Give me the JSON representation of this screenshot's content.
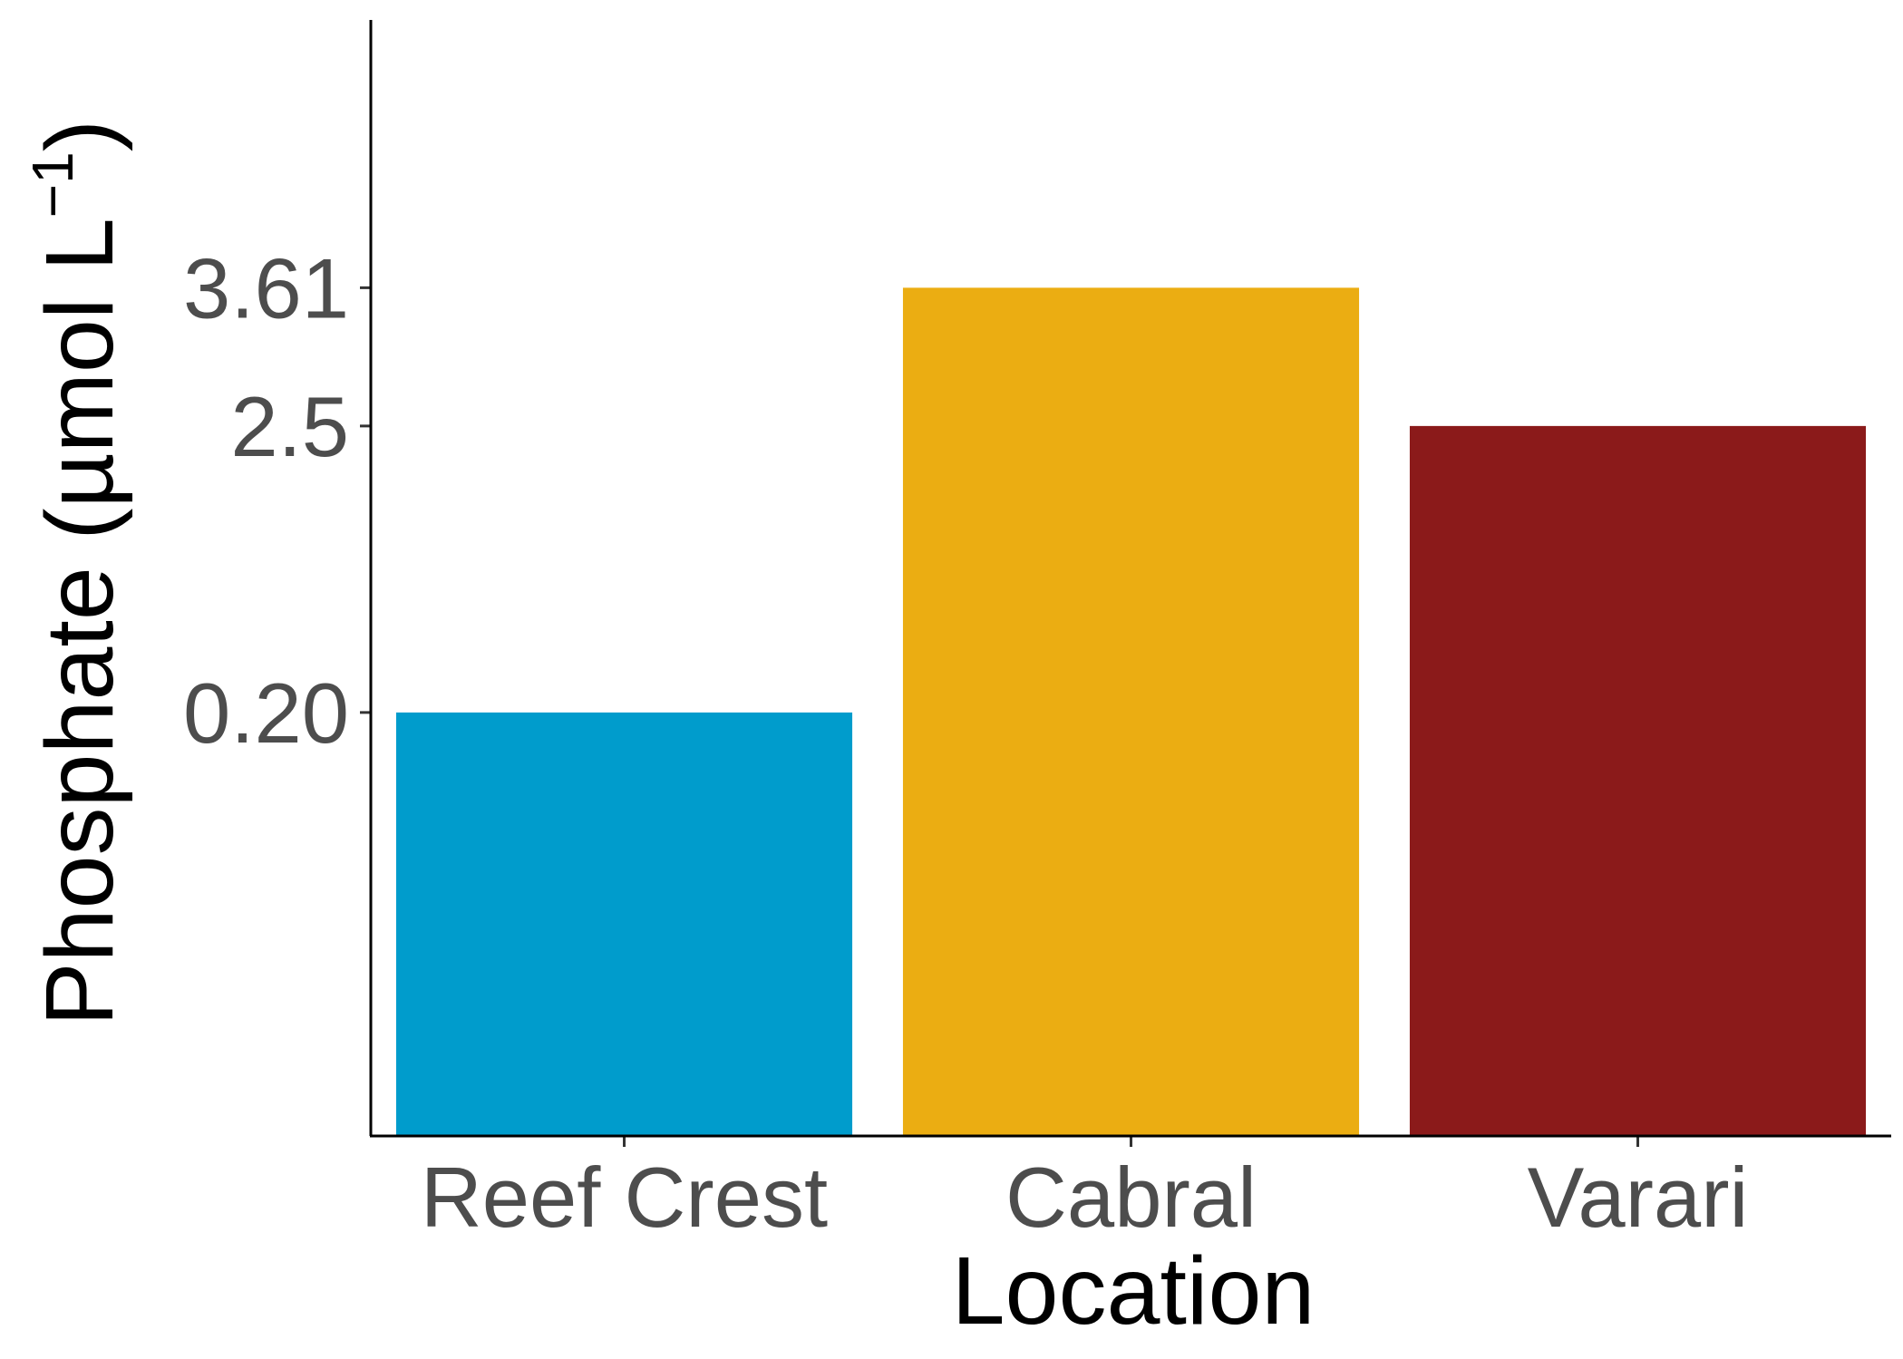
{
  "chart_data": {
    "type": "bar",
    "categories": [
      "Reef Crest",
      "Cabral",
      "Varari"
    ],
    "values": [
      0.2,
      3.61,
      2.5
    ],
    "colors": [
      "#009ccc",
      "#ebad12",
      "#8b1a1a"
    ],
    "y_ticks": [
      {
        "value": 0.2,
        "label": "0.20"
      },
      {
        "value": 2.5,
        "label": "2.5"
      },
      {
        "value": 3.61,
        "label": "3.61"
      }
    ],
    "title": "",
    "xlabel": "Location",
    "ylabel_main": "Phosphate (µmol L",
    "ylabel_superscript": "−1",
    "ylabel_close": ")",
    "ylim": [
      -3.2,
      5.76
    ],
    "grid": false,
    "legend": "none"
  }
}
